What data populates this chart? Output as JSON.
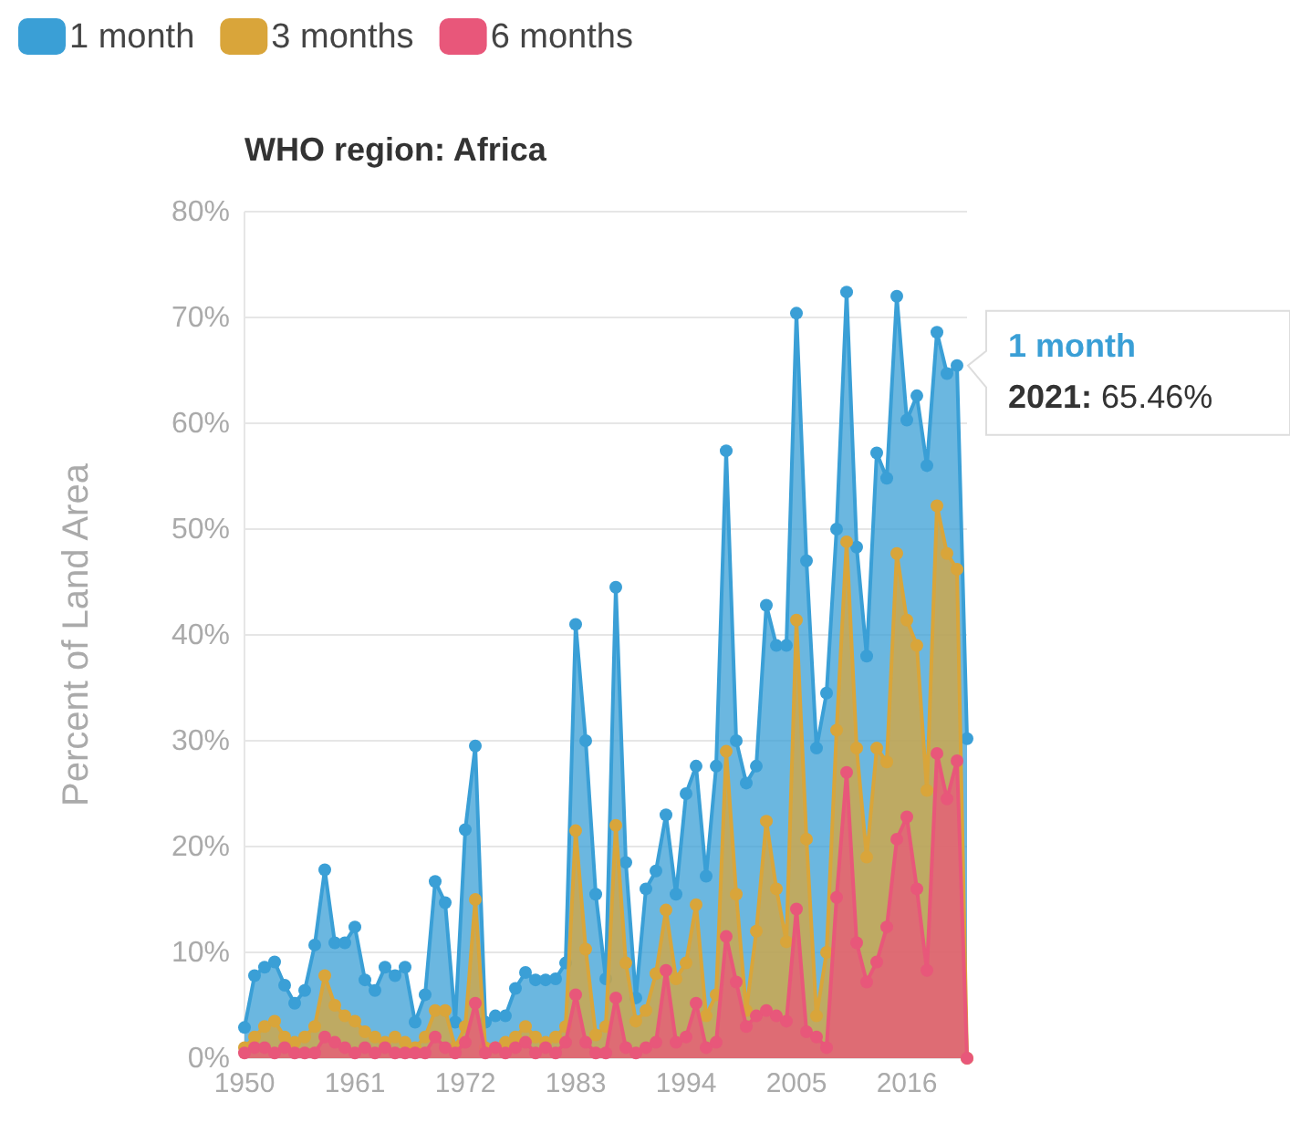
{
  "chart_data": {
    "type": "area",
    "title": "WHO region: Africa",
    "ylabel": "Percent of Land Area",
    "x": [
      1950,
      1951,
      1952,
      1953,
      1954,
      1955,
      1956,
      1957,
      1958,
      1959,
      1960,
      1961,
      1962,
      1963,
      1964,
      1965,
      1966,
      1967,
      1968,
      1969,
      1970,
      1971,
      1972,
      1973,
      1974,
      1975,
      1976,
      1977,
      1978,
      1979,
      1980,
      1981,
      1982,
      1983,
      1984,
      1985,
      1986,
      1987,
      1988,
      1989,
      1990,
      1991,
      1992,
      1993,
      1994,
      1995,
      1996,
      1997,
      1998,
      1999,
      2000,
      2001,
      2002,
      2003,
      2004,
      2005,
      2006,
      2007,
      2008,
      2009,
      2010,
      2011,
      2012,
      2013,
      2014,
      2015,
      2016,
      2017,
      2018,
      2019,
      2020,
      2021,
      2022
    ],
    "series": [
      {
        "name": "1 month",
        "color": "#3a9fd6",
        "values": [
          2.9,
          7.8,
          8.6,
          9.1,
          6.9,
          5.2,
          6.4,
          10.7,
          17.8,
          10.9,
          10.9,
          12.4,
          7.4,
          6.4,
          8.6,
          7.8,
          8.6,
          3.4,
          6,
          16.7,
          14.7,
          3.4,
          21.6,
          29.5,
          3.4,
          4,
          4,
          6.6,
          8.1,
          7.4,
          7.4,
          7.5,
          9,
          41,
          30,
          15.5,
          7.5,
          44.5,
          18.5,
          5.7,
          16,
          17.7,
          23,
          15.5,
          25,
          27.6,
          17.2,
          27.6,
          57.4,
          30,
          26,
          27.6,
          42.8,
          39,
          39,
          70.4,
          47,
          29.3,
          34.5,
          50,
          72.4,
          48.3,
          38,
          57.2,
          54.8,
          72,
          60.3,
          62.6,
          56,
          68.6,
          64.7,
          65.46,
          30.2
        ]
      },
      {
        "name": "3 months",
        "color": "#d9a53a",
        "values": [
          1,
          2,
          3,
          3.5,
          2,
          1.5,
          2,
          3,
          7.8,
          5,
          4,
          3.5,
          2.5,
          2,
          1.5,
          2,
          1.5,
          1,
          2,
          4.5,
          4.5,
          1,
          3,
          15,
          1,
          1,
          1.5,
          2,
          3,
          2,
          1.5,
          2,
          3,
          21.5,
          10.3,
          2.2,
          3,
          22,
          9,
          3.5,
          4.5,
          8,
          14,
          7.5,
          9,
          14.5,
          4,
          6,
          29,
          15.5,
          4.5,
          12,
          22.4,
          16,
          11,
          41.4,
          20.7,
          4,
          10,
          31,
          48.8,
          29.3,
          19,
          29.3,
          28,
          47.7,
          41.4,
          39,
          25.3,
          52.2,
          47.7,
          46.2,
          0
        ]
      },
      {
        "name": "6 months",
        "color": "#e8577a",
        "values": [
          0.5,
          1,
          1,
          0.5,
          1,
          0.5,
          0.5,
          0.5,
          2,
          1.5,
          1,
          0.5,
          1,
          0.5,
          1,
          0.5,
          0.5,
          0.5,
          0.5,
          2,
          1,
          0.5,
          1.5,
          5.2,
          0.5,
          1,
          0.5,
          1,
          1.5,
          0.5,
          1,
          0.5,
          1.5,
          6,
          1.5,
          0.5,
          0.5,
          5.7,
          1,
          0.5,
          1,
          1.5,
          8.3,
          1.5,
          2,
          5.2,
          1,
          1.5,
          11.5,
          7.2,
          3,
          4,
          4.5,
          4,
          3.5,
          14.1,
          2.5,
          2,
          1,
          15.2,
          27,
          10.9,
          7.2,
          9.1,
          12.4,
          20.7,
          22.8,
          16,
          8.3,
          28.8,
          24.5,
          28.1,
          0
        ]
      }
    ],
    "xlim": [
      1950,
      2022
    ],
    "xticks": [
      1950,
      1961,
      1972,
      1983,
      1994,
      2005,
      2016
    ],
    "ylim": [
      0,
      80
    ],
    "yticks": [
      {
        "value": 0,
        "label": "0%"
      },
      {
        "value": 10,
        "label": "10%"
      },
      {
        "value": 20,
        "label": "20%"
      },
      {
        "value": 30,
        "label": "30%"
      },
      {
        "value": 40,
        "label": "40%"
      },
      {
        "value": 50,
        "label": "50%"
      },
      {
        "value": 60,
        "label": "60%"
      },
      {
        "value": 70,
        "label": "70%"
      },
      {
        "value": 80,
        "label": "80%"
      }
    ],
    "grid": "y",
    "legend": "top left",
    "marker": "circle",
    "annotations": [
      {
        "text": "2021: 65.46%",
        "x": 2021,
        "y": 65.46
      }
    ]
  }
}
